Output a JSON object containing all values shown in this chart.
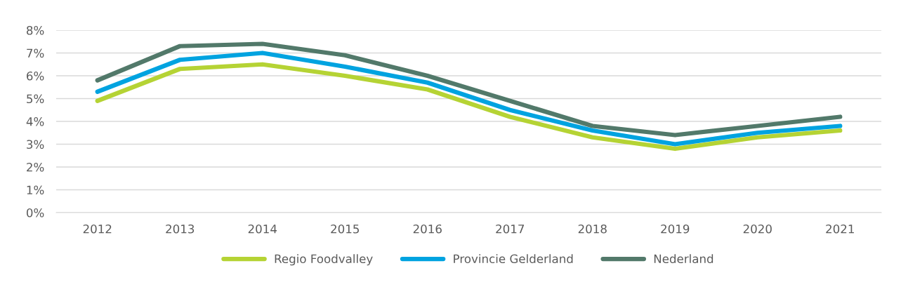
{
  "chart_data": {
    "type": "line",
    "categories": [
      "2012",
      "2013",
      "2014",
      "2015",
      "2016",
      "2017",
      "2018",
      "2019",
      "2020",
      "2021"
    ],
    "series": [
      {
        "name": "Regio Foodvalley",
        "color": "#b5d334",
        "values": [
          4.9,
          6.3,
          6.5,
          6.0,
          5.4,
          4.2,
          3.3,
          2.8,
          3.3,
          3.6
        ]
      },
      {
        "name": "Provincie Gelderland",
        "color": "#00a3e0",
        "values": [
          5.3,
          6.7,
          7.0,
          6.4,
          5.7,
          4.5,
          3.6,
          3.0,
          3.5,
          3.8
        ]
      },
      {
        "name": "Nederland",
        "color": "#52796a",
        "values": [
          5.8,
          7.3,
          7.4,
          6.9,
          6.0,
          4.9,
          3.8,
          3.4,
          3.8,
          4.2
        ]
      }
    ],
    "ylim": [
      0,
      8
    ],
    "yticks": [
      {
        "value": 0,
        "label": "0%"
      },
      {
        "value": 1,
        "label": "1%"
      },
      {
        "value": 2,
        "label": "2%"
      },
      {
        "value": 3,
        "label": "3%"
      },
      {
        "value": 4,
        "label": "4%"
      },
      {
        "value": 5,
        "label": "5%"
      },
      {
        "value": 6,
        "label": "6%"
      },
      {
        "value": 7,
        "label": "7%"
      },
      {
        "value": 8,
        "label": "8%"
      }
    ],
    "grid": "y",
    "legend": "bottom",
    "marker": "none",
    "line_style": "solid"
  }
}
